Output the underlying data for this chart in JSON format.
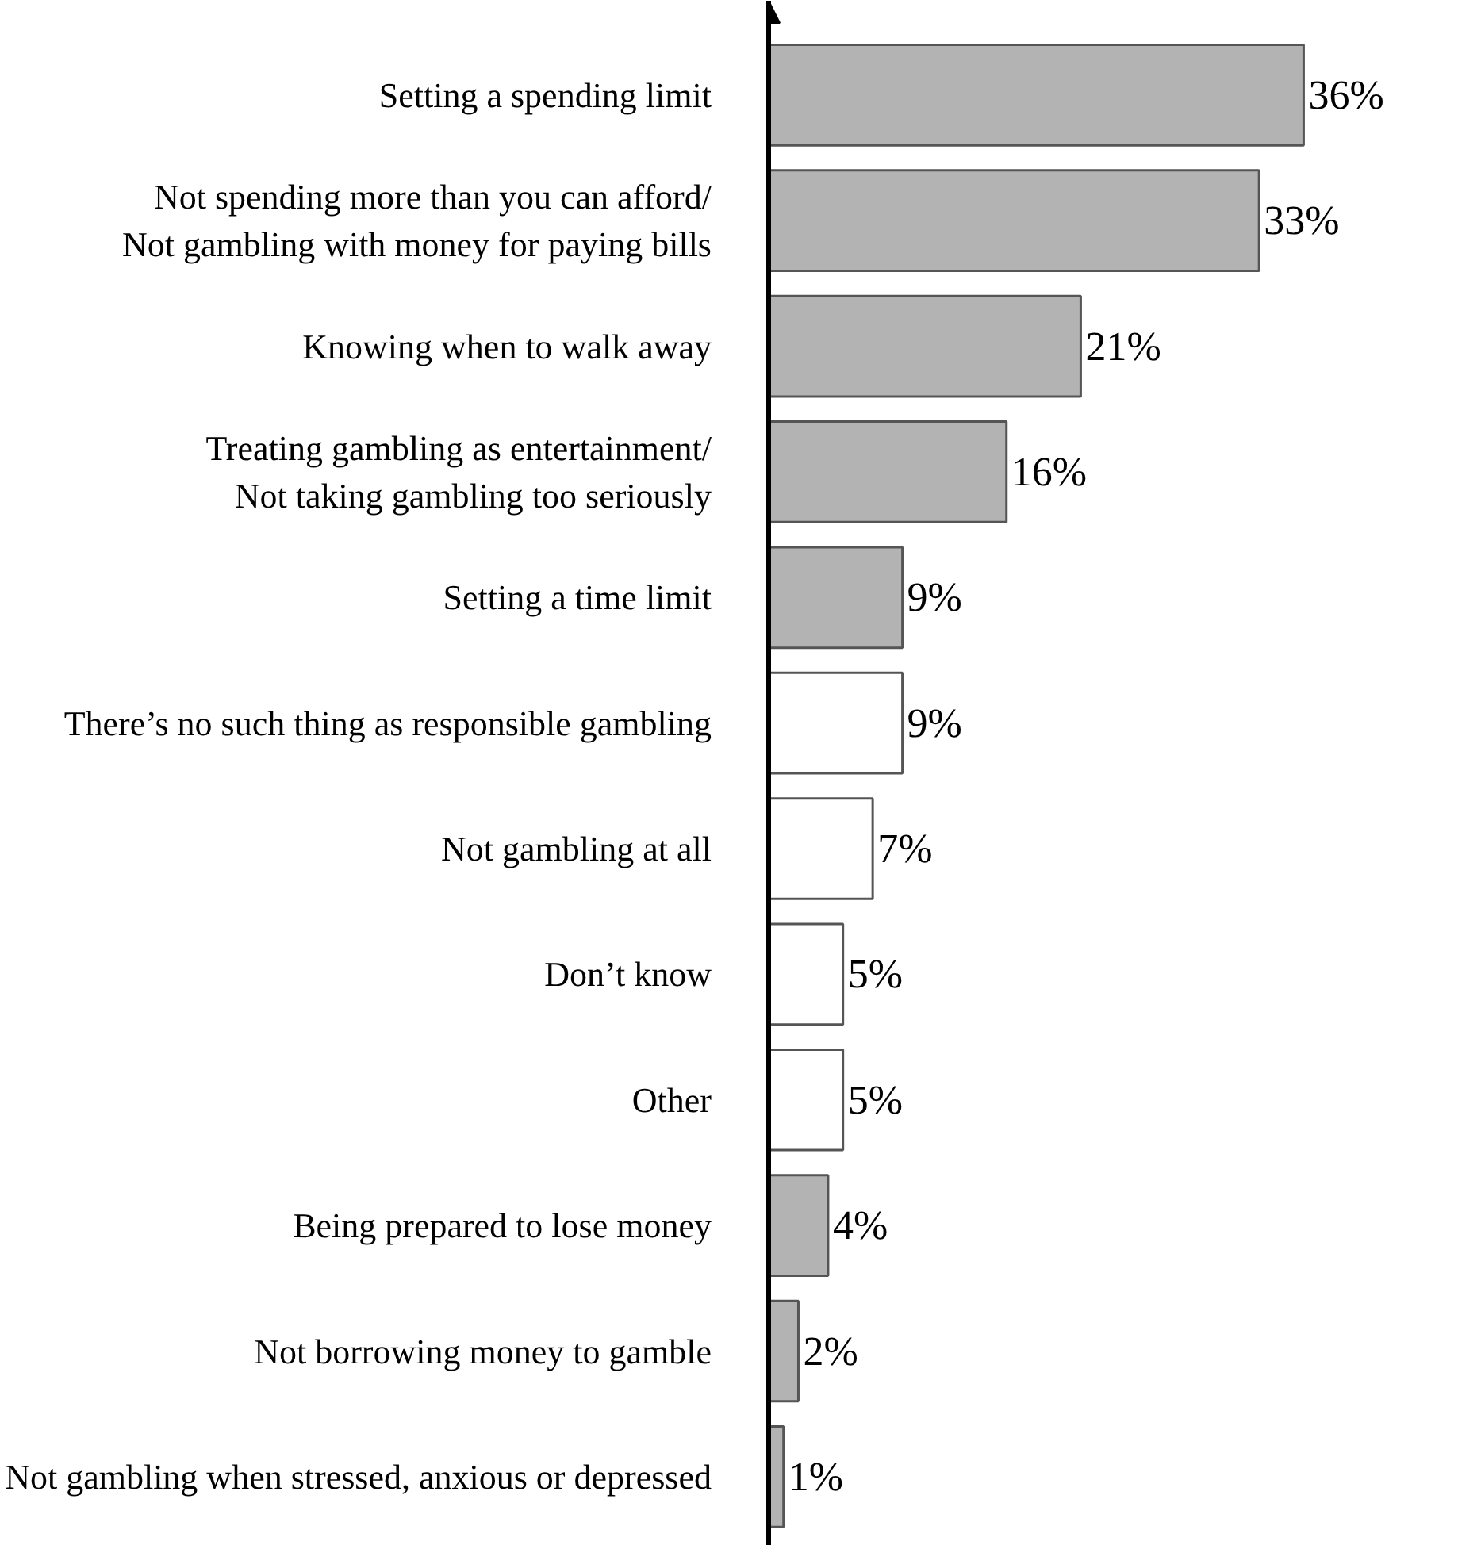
{
  "chart_data": {
    "type": "bar",
    "orientation": "horizontal",
    "categories": [
      "Setting a spending limit",
      "Not spending more than you can afford/\nNot gambling with money for paying bills",
      "Knowing when to walk away",
      "Treating gambling as entertainment/\nNot taking gambling too seriously",
      "Setting a time limit",
      "There’s no such thing as responsible gambling",
      "Not gambling at all",
      "Don’t know",
      "Other",
      "Being prepared to lose money",
      "Not borrowing money to gamble",
      "Not gambling when stressed, anxious or depressed"
    ],
    "values": [
      36,
      33,
      21,
      16,
      9,
      9,
      7,
      5,
      5,
      4,
      2,
      1
    ],
    "colors": [
      "#b3b3b3",
      "#b3b3b3",
      "#b3b3b3",
      "#b3b3b3",
      "#b3b3b3",
      "#ffffff",
      "#ffffff",
      "#ffffff",
      "#ffffff",
      "#b3b3b3",
      "#b3b3b3",
      "#b3b3b3"
    ],
    "value_labels": [
      "36%",
      "33%",
      "21%",
      "16%",
      "9%",
      "9%",
      "7%",
      "5%",
      "5%",
      "4%",
      "2%",
      "1%"
    ]
  }
}
